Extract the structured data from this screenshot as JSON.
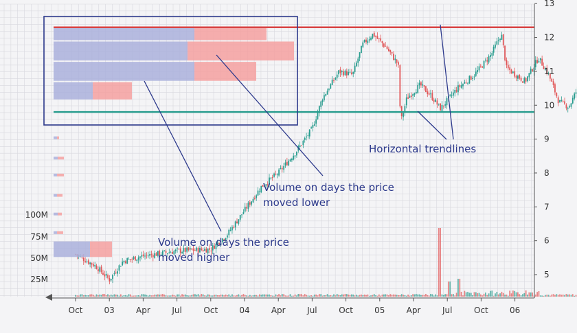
{
  "chart_data": {
    "type": "candlestick",
    "title": "",
    "xlabel": "",
    "ylabel": "",
    "grid": true,
    "ylim": [
      4.4,
      13
    ],
    "yticks": [
      5,
      6,
      7,
      8,
      9,
      10,
      11,
      12,
      13
    ],
    "xticks": [
      "Oct",
      "03",
      "Apr",
      "Jul",
      "Oct",
      "04",
      "Apr",
      "Jul",
      "Oct",
      "05",
      "Apr",
      "Jul",
      "Oct",
      "06"
    ],
    "volume_axis_ticks": [
      "25M",
      "50M",
      "75M",
      "100M"
    ],
    "price_path": [
      {
        "x": 0.0,
        "y": 5.6
      },
      {
        "x": 0.6,
        "y": 5.25
      },
      {
        "x": 1.0,
        "y": 4.85
      },
      {
        "x": 1.4,
        "y": 5.4
      },
      {
        "x": 2.0,
        "y": 5.55
      },
      {
        "x": 3.0,
        "y": 5.7
      },
      {
        "x": 4.0,
        "y": 5.75
      },
      {
        "x": 4.5,
        "y": 6.2
      },
      {
        "x": 5.0,
        "y": 6.9
      },
      {
        "x": 5.5,
        "y": 7.6
      },
      {
        "x": 6.0,
        "y": 8.0
      },
      {
        "x": 6.5,
        "y": 8.6
      },
      {
        "x": 7.0,
        "y": 9.3
      },
      {
        "x": 7.3,
        "y": 10.2
      },
      {
        "x": 7.8,
        "y": 11.0
      },
      {
        "x": 8.2,
        "y": 10.9
      },
      {
        "x": 8.5,
        "y": 11.8
      },
      {
        "x": 8.8,
        "y": 12.1
      },
      {
        "x": 9.2,
        "y": 11.7
      },
      {
        "x": 9.55,
        "y": 11.2
      },
      {
        "x": 9.62,
        "y": 9.5
      },
      {
        "x": 9.8,
        "y": 10.2
      },
      {
        "x": 10.2,
        "y": 10.6
      },
      {
        "x": 10.5,
        "y": 10.3
      },
      {
        "x": 10.8,
        "y": 9.9
      },
      {
        "x": 11.3,
        "y": 10.5
      },
      {
        "x": 11.8,
        "y": 10.9
      },
      {
        "x": 12.3,
        "y": 11.5
      },
      {
        "x": 12.6,
        "y": 12.1
      },
      {
        "x": 12.75,
        "y": 11.1
      },
      {
        "x": 13.3,
        "y": 10.7
      },
      {
        "x": 13.7,
        "y": 11.4
      },
      {
        "x": 14.0,
        "y": 10.9
      },
      {
        "x": 14.3,
        "y": 10.1
      },
      {
        "x": 14.6,
        "y": 9.95
      },
      {
        "x": 15.0,
        "y": 10.8
      },
      {
        "x": 15.3,
        "y": 11.3
      },
      {
        "x": 15.6,
        "y": 12.1
      },
      {
        "x": 15.9,
        "y": 11.4
      },
      {
        "x": 16.2,
        "y": 11.6
      },
      {
        "x": 16.6,
        "y": 11.5
      },
      {
        "x": 17.0,
        "y": 11.8
      },
      {
        "x": 17.3,
        "y": 12.1
      },
      {
        "x": 17.55,
        "y": 12.15
      }
    ],
    "horizontal_trendlines": [
      {
        "y": 12.3,
        "color": "#d94444"
      },
      {
        "y": 9.8,
        "color": "#2a9d8f"
      }
    ],
    "volume_profile": [
      {
        "price_low": 11.9,
        "price_high": 12.3,
        "up_volume": 205,
        "down_volume": 105
      },
      {
        "price_low": 11.3,
        "price_high": 11.9,
        "up_volume": 195,
        "down_volume": 155
      },
      {
        "price_low": 10.7,
        "price_high": 11.3,
        "up_volume": 205,
        "down_volume": 90
      },
      {
        "price_low": 10.15,
        "price_high": 10.7,
        "up_volume": 57,
        "down_volume": 57
      },
      {
        "price_low": 9.0,
        "price_high": 9.1,
        "up_volume": 5,
        "down_volume": 3
      },
      {
        "price_low": 8.4,
        "price_high": 8.5,
        "up_volume": 6,
        "down_volume": 9
      },
      {
        "price_low": 7.9,
        "price_high": 8.0,
        "up_volume": 5,
        "down_volume": 10
      },
      {
        "price_low": 7.3,
        "price_high": 7.4,
        "up_volume": 5,
        "down_volume": 8
      },
      {
        "price_low": 6.75,
        "price_high": 6.85,
        "up_volume": 6,
        "down_volume": 6
      },
      {
        "price_low": 6.2,
        "price_high": 6.3,
        "up_volume": 5,
        "down_volume": 9
      },
      {
        "price_low": 5.5,
        "price_high": 6.0,
        "up_volume": 53,
        "down_volume": 32
      }
    ],
    "annotations": [
      {
        "text_lines": [
          "Volume on days the price",
          "moved higher"
        ]
      },
      {
        "text_lines": [
          "Volume on days the price",
          "moved lower"
        ]
      },
      {
        "text_lines": [
          "Horizontal trendlines"
        ]
      }
    ],
    "colors": {
      "up": "#2a9d8f",
      "down": "#e15759",
      "profile_up": "#aab0dc",
      "profile_down": "#f4a0a0",
      "highlight_box": "#2d3a8c",
      "annotation_line": "#2d3a8c",
      "grid": "#d8d8de"
    }
  }
}
